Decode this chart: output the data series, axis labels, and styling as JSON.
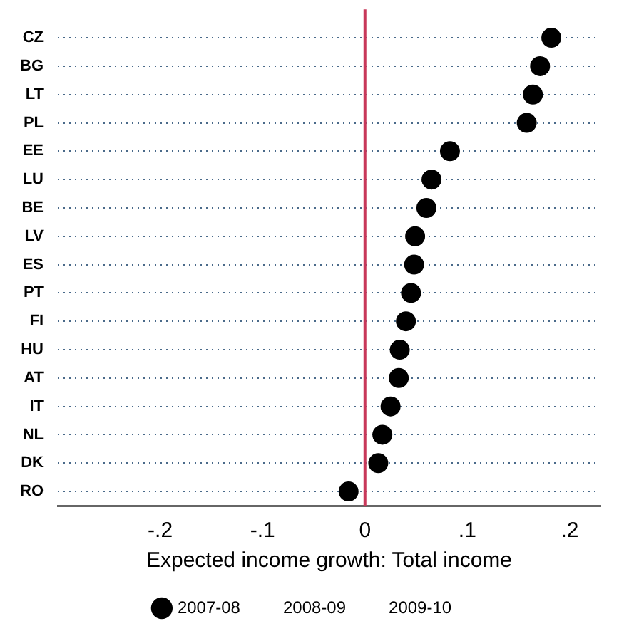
{
  "chart_data": {
    "type": "scatter",
    "orientation": "horizontal",
    "categories": [
      "CZ",
      "BG",
      "LT",
      "PL",
      "EE",
      "LU",
      "BE",
      "LV",
      "ES",
      "PT",
      "FI",
      "HU",
      "AT",
      "IT",
      "NL",
      "DK",
      "RO"
    ],
    "series": [
      {
        "name": "2007-08",
        "color": "#000000",
        "values": [
          0.182,
          0.171,
          0.164,
          0.158,
          0.083,
          0.065,
          0.06,
          0.049,
          0.048,
          0.045,
          0.04,
          0.034,
          0.033,
          0.025,
          0.017,
          0.013,
          -0.016
        ]
      },
      {
        "name": "2008-09",
        "values": [
          null,
          null,
          null,
          null,
          null,
          null,
          null,
          null,
          null,
          null,
          null,
          null,
          null,
          null,
          null,
          null,
          null
        ]
      },
      {
        "name": "2009-10",
        "values": [
          null,
          null,
          null,
          null,
          null,
          null,
          null,
          null,
          null,
          null,
          null,
          null,
          null,
          null,
          null,
          null,
          null
        ]
      }
    ],
    "xlabel": "Expected income growth: Total income",
    "xlim": [
      -0.3,
      0.23
    ],
    "xticks": [
      {
        "value": -0.2,
        "label": "-.2"
      },
      {
        "value": -0.1,
        "label": "-.1"
      },
      0,
      {
        "value": 0.1,
        "label": ".1"
      },
      {
        "value": 0.2,
        "label": ".2"
      }
    ],
    "ref_lines": [
      {
        "axis": "x",
        "value": 0,
        "color": "#c8385a"
      }
    ],
    "grid": "y",
    "marker": "circle",
    "legend": "bottom"
  }
}
